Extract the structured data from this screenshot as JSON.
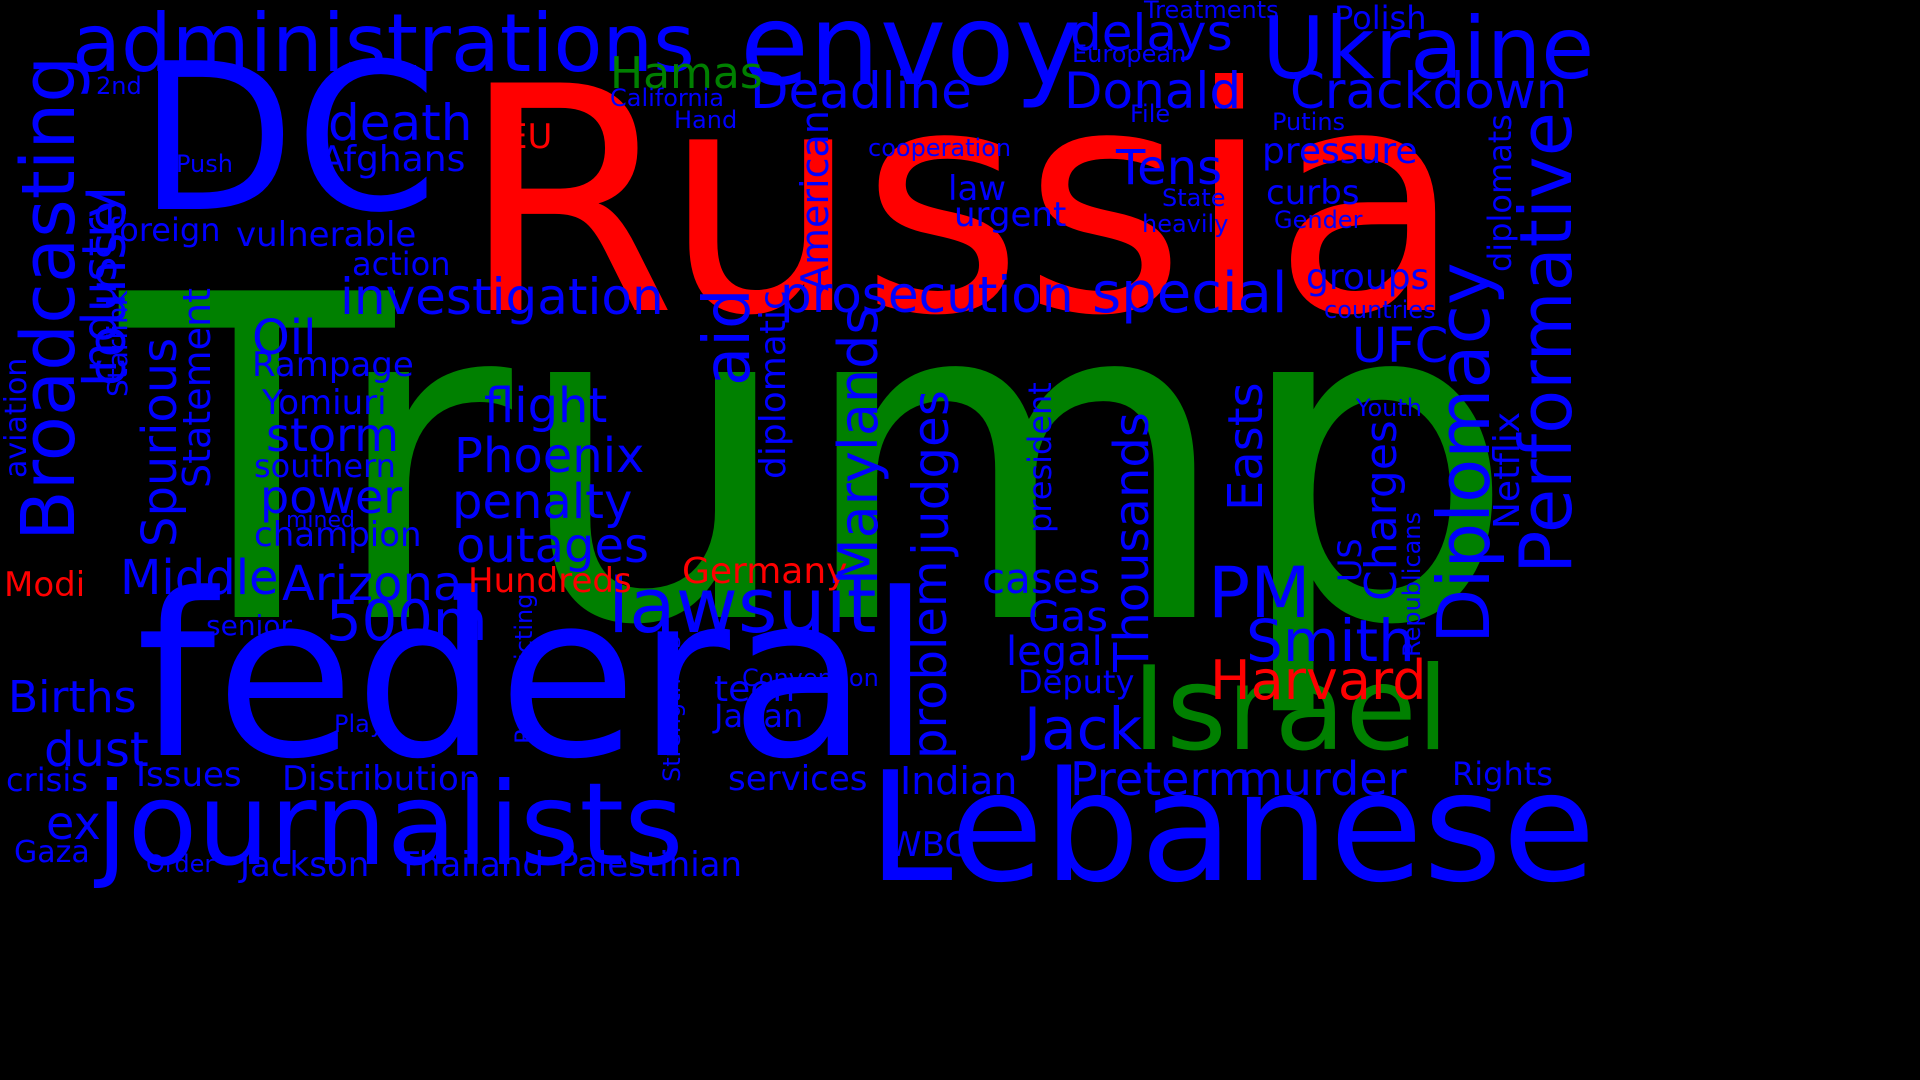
{
  "colors": {
    "background": "#000000",
    "blue": "#0000ff",
    "red": "#ff0000",
    "green": "#008000"
  },
  "words": [
    {
      "text": "Trump",
      "c": "green"
    },
    {
      "text": "Russia",
      "c": "red"
    },
    {
      "text": "federal",
      "c": "blue"
    },
    {
      "text": "DC",
      "c": "blue"
    },
    {
      "text": "Lebanese",
      "c": "blue"
    },
    {
      "text": "journalists",
      "c": "blue"
    },
    {
      "text": "envoy",
      "c": "blue"
    },
    {
      "text": "Israel",
      "c": "green"
    },
    {
      "text": "administrations",
      "c": "blue"
    },
    {
      "text": "Ukraine",
      "c": "blue"
    },
    {
      "text": "Broadcasting",
      "c": "blue"
    },
    {
      "text": "Diplomacy",
      "c": "blue"
    },
    {
      "text": "Performative",
      "c": "blue"
    },
    {
      "text": "lawsuit",
      "c": "blue"
    },
    {
      "text": "Preterm",
      "c": "blue"
    },
    {
      "text": "murder",
      "c": "blue"
    },
    {
      "text": "investigation",
      "c": "blue"
    },
    {
      "text": "prosecution",
      "c": "blue"
    },
    {
      "text": "special",
      "c": "blue"
    },
    {
      "text": "Crackdown",
      "c": "blue"
    },
    {
      "text": "Deadline",
      "c": "blue"
    },
    {
      "text": "Donald",
      "c": "blue"
    },
    {
      "text": "delays",
      "c": "blue"
    },
    {
      "text": "Hamas",
      "c": "green"
    },
    {
      "text": "Harvard",
      "c": "red"
    },
    {
      "text": "Smith",
      "c": "blue"
    },
    {
      "text": "Jack",
      "c": "blue"
    },
    {
      "text": "PM",
      "c": "blue"
    },
    {
      "text": "Arizona",
      "c": "blue"
    },
    {
      "text": "outages",
      "c": "blue"
    },
    {
      "text": "penalty",
      "c": "blue"
    },
    {
      "text": "Phoenix",
      "c": "blue"
    },
    {
      "text": "flight",
      "c": "blue"
    },
    {
      "text": "storm",
      "c": "blue"
    },
    {
      "text": "power",
      "c": "blue"
    },
    {
      "text": "500m",
      "c": "blue"
    },
    {
      "text": "Middle",
      "c": "blue"
    },
    {
      "text": "Births",
      "c": "blue"
    },
    {
      "text": "dust",
      "c": "blue"
    },
    {
      "text": "death",
      "c": "blue"
    },
    {
      "text": "Afghans",
      "c": "blue"
    },
    {
      "text": "vulnerable",
      "c": "blue"
    },
    {
      "text": "foreign",
      "c": "blue"
    },
    {
      "text": "Oil",
      "c": "blue"
    },
    {
      "text": "Tens",
      "c": "blue"
    },
    {
      "text": "pressure",
      "c": "blue"
    },
    {
      "text": "curbs",
      "c": "blue"
    },
    {
      "text": "groups",
      "c": "blue"
    },
    {
      "text": "UFC",
      "c": "blue"
    },
    {
      "text": "cases",
      "c": "blue"
    },
    {
      "text": "Gas",
      "c": "blue"
    },
    {
      "text": "legal",
      "c": "blue"
    },
    {
      "text": "Deputy",
      "c": "blue"
    },
    {
      "text": "Indian",
      "c": "blue"
    },
    {
      "text": "services",
      "c": "blue"
    },
    {
      "text": "Distribution",
      "c": "blue"
    },
    {
      "text": "Issues",
      "c": "blue"
    },
    {
      "text": "crisis",
      "c": "blue"
    },
    {
      "text": "ex",
      "c": "blue"
    },
    {
      "text": "Gaza",
      "c": "blue"
    },
    {
      "text": "Order",
      "c": "blue"
    },
    {
      "text": "Jackson",
      "c": "blue"
    },
    {
      "text": "Thailand",
      "c": "blue"
    },
    {
      "text": "Palestinian",
      "c": "blue"
    },
    {
      "text": "WBC",
      "c": "blue"
    },
    {
      "text": "Rights",
      "c": "blue"
    },
    {
      "text": "teen",
      "c": "blue"
    },
    {
      "text": "Japan",
      "c": "blue"
    },
    {
      "text": "Convention",
      "c": "blue"
    },
    {
      "text": "Germany",
      "c": "red"
    },
    {
      "text": "Hundreds",
      "c": "red"
    },
    {
      "text": "Modi",
      "c": "red"
    },
    {
      "text": "EU",
      "c": "red"
    },
    {
      "text": "senior",
      "c": "blue"
    },
    {
      "text": "champion",
      "c": "blue"
    },
    {
      "text": "mined",
      "c": "blue"
    },
    {
      "text": "southern",
      "c": "blue"
    },
    {
      "text": "Yomiuri",
      "c": "blue"
    },
    {
      "text": "Rampage",
      "c": "blue"
    },
    {
      "text": "action",
      "c": "blue"
    },
    {
      "text": "Push",
      "c": "blue"
    },
    {
      "text": "Hand",
      "c": "blue"
    },
    {
      "text": "California",
      "c": "blue"
    },
    {
      "text": "2nd",
      "c": "blue"
    },
    {
      "text": "cooperation",
      "c": "blue"
    },
    {
      "text": "law",
      "c": "blue"
    },
    {
      "text": "urgent",
      "c": "blue"
    },
    {
      "text": "State",
      "c": "blue"
    },
    {
      "text": "heavily",
      "c": "blue"
    },
    {
      "text": "Gender",
      "c": "blue"
    },
    {
      "text": "countries",
      "c": "blue"
    },
    {
      "text": "Putins",
      "c": "blue"
    },
    {
      "text": "File",
      "c": "blue"
    },
    {
      "text": "European",
      "c": "blue"
    },
    {
      "text": "Treatments",
      "c": "blue"
    },
    {
      "text": "Polish",
      "c": "blue"
    },
    {
      "text": "Youth",
      "c": "blue"
    },
    {
      "text": "Play",
      "c": "blue"
    },
    {
      "text": "counsel",
      "c": "blue"
    },
    {
      "text": "Industry",
      "c": "blue"
    },
    {
      "text": "Spurious",
      "c": "blue"
    },
    {
      "text": "Statement",
      "c": "blue"
    },
    {
      "text": "Starlink",
      "c": "blue"
    },
    {
      "text": "aviation",
      "c": "blue"
    },
    {
      "text": "aid",
      "c": "blue"
    },
    {
      "text": "diplomatic",
      "c": "blue"
    },
    {
      "text": "American",
      "c": "blue"
    },
    {
      "text": "Marylands",
      "c": "blue"
    },
    {
      "text": "judges",
      "c": "blue"
    },
    {
      "text": "problem",
      "c": "blue"
    },
    {
      "text": "president",
      "c": "blue"
    },
    {
      "text": "Thousands",
      "c": "blue"
    },
    {
      "text": "Easts",
      "c": "blue"
    },
    {
      "text": "Charges",
      "c": "blue"
    },
    {
      "text": "US",
      "c": "blue"
    },
    {
      "text": "Republicans",
      "c": "blue"
    },
    {
      "text": "Netflix",
      "c": "blue"
    },
    {
      "text": "diplomats",
      "c": "blue"
    },
    {
      "text": "Redistricting",
      "c": "blue"
    },
    {
      "text": "Strengthens",
      "c": "blue"
    }
  ]
}
